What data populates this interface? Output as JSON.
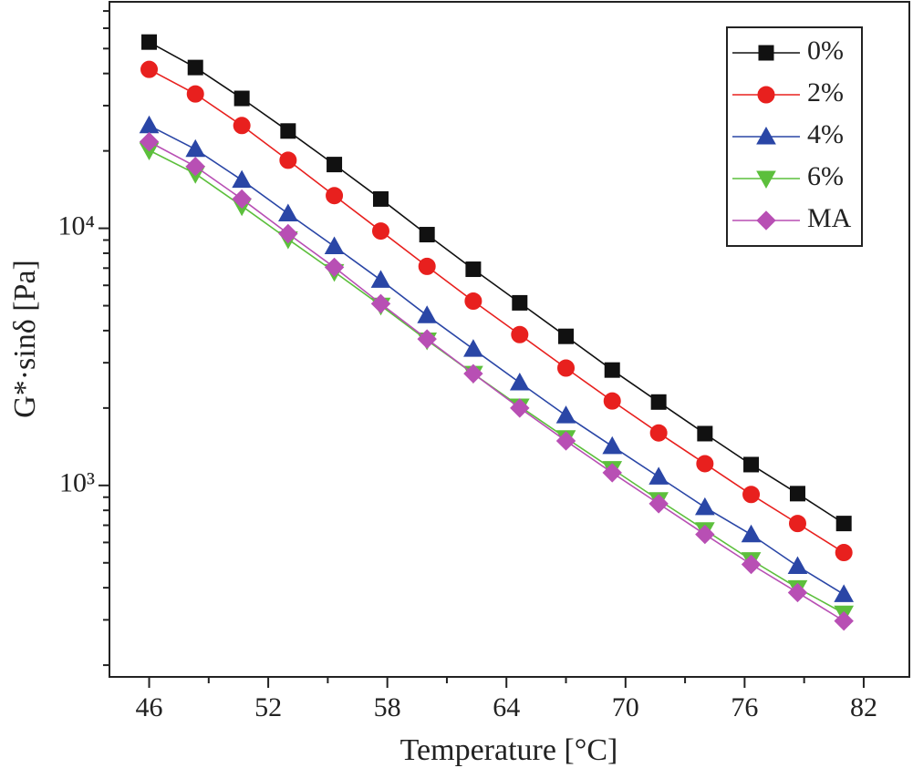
{
  "chart_data": {
    "type": "line",
    "x_label": "Temperature [°C]",
    "y_label": "G*·sinδ [Pa]",
    "x": [
      46,
      48.33,
      50.67,
      53,
      55.33,
      57.67,
      60,
      62.33,
      64.67,
      67,
      69.33,
      71.67,
      74,
      76.33,
      78.67,
      81
    ],
    "series": [
      {
        "name": "0%",
        "color": "#111111",
        "marker": "square",
        "values": [
          53000,
          42200,
          32000,
          23900,
          17700,
          13000,
          9450,
          6930,
          5130,
          3800,
          2810,
          2110,
          1590,
          1205,
          929,
          711
        ]
      },
      {
        "name": "2%",
        "color": "#e8201e",
        "marker": "circle",
        "values": [
          41500,
          33300,
          25100,
          18400,
          13400,
          9760,
          7110,
          5210,
          3860,
          2860,
          2130,
          1600,
          1215,
          922,
          711,
          548
        ]
      },
      {
        "name": "4%",
        "color": "#2a46a6",
        "marker": "triangle-up",
        "values": [
          25100,
          20300,
          15400,
          11400,
          8500,
          6290,
          4580,
          3390,
          2510,
          1870,
          1420,
          1080,
          822,
          644,
          485,
          377
        ]
      },
      {
        "name": "6%",
        "color": "#5cbf3c",
        "marker": "triangle-down",
        "values": [
          20100,
          16300,
          12200,
          9070,
          6770,
          5010,
          3670,
          2720,
          2030,
          1530,
          1160,
          878,
          671,
          513,
          399,
          318
        ]
      },
      {
        "name": "MA",
        "color": "#b84fb4",
        "marker": "diamond",
        "values": [
          21700,
          17400,
          13000,
          9530,
          7050,
          5090,
          3710,
          2720,
          2000,
          1490,
          1120,
          849,
          645,
          493,
          383,
          297
        ]
      }
    ],
    "xlim": [
      44,
      84.3
    ],
    "xticks": [
      46,
      52,
      58,
      64,
      70,
      76,
      82
    ],
    "xminorticks": [
      49,
      55,
      61,
      67,
      73,
      79
    ],
    "ylim": [
      180,
      76000
    ],
    "yscale": "log",
    "yticks": [
      {
        "value": 1000,
        "label": "10³"
      },
      {
        "value": 10000,
        "label": "10⁴"
      }
    ],
    "yminorticks": [
      200,
      300,
      400,
      500,
      600,
      700,
      800,
      900,
      2000,
      3000,
      4000,
      5000,
      6000,
      7000,
      8000,
      9000,
      20000,
      30000,
      40000,
      50000,
      60000,
      70000
    ],
    "legend": "upper right",
    "grid": false
  }
}
